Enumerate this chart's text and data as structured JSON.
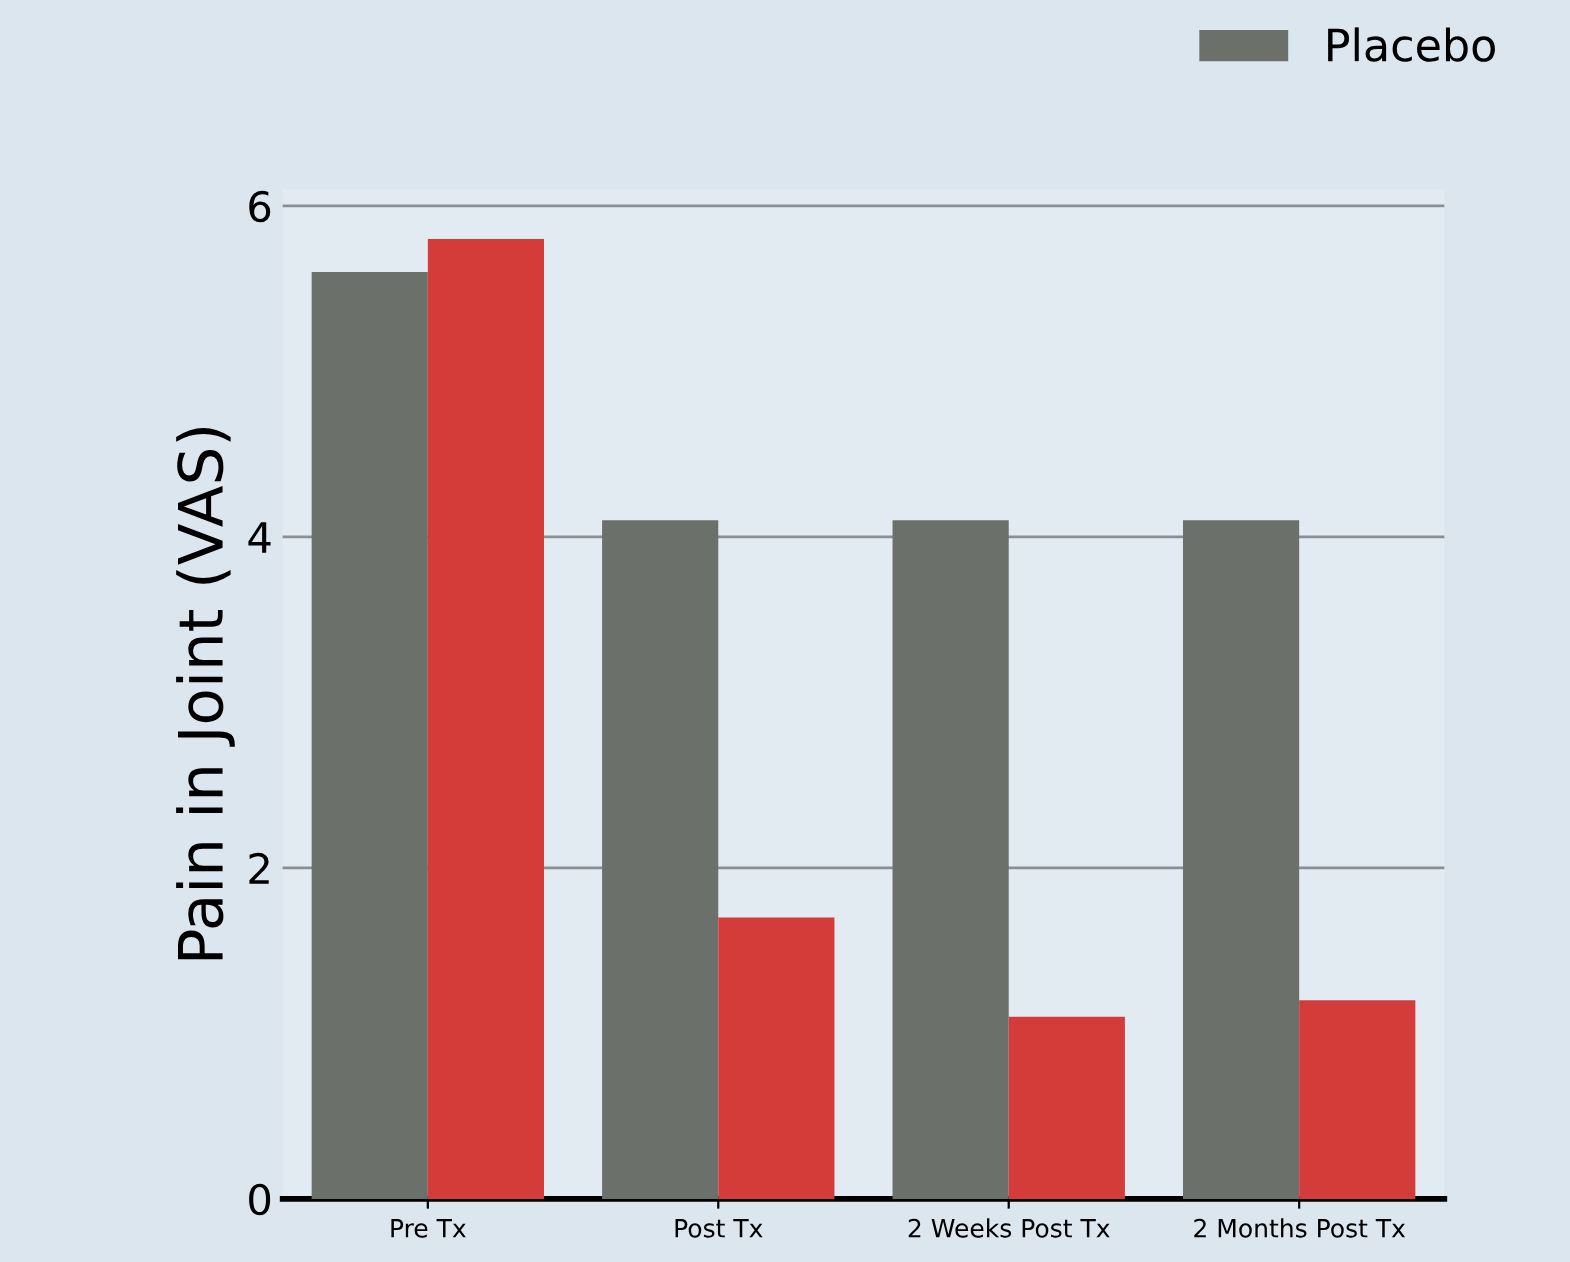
{
  "chart_data": {
    "type": "bar",
    "ylabel": "Pain in Joint (VAS)",
    "categories": [
      "Pre Tx",
      "Post Tx",
      "2 Weeks Post Tx",
      "2 Months Post Tx"
    ],
    "series": [
      {
        "name": "Placebo",
        "color": "#6b706b",
        "values": [
          5.6,
          4.1,
          4.1,
          4.1
        ]
      },
      {
        "color": "#d43c3a",
        "values": [
          5.8,
          1.7,
          1.1,
          1.2
        ]
      }
    ],
    "ylim": [
      0,
      6.1
    ],
    "yticks": [
      0,
      2,
      4,
      6
    ],
    "grid": "y",
    "legend": "top right"
  }
}
